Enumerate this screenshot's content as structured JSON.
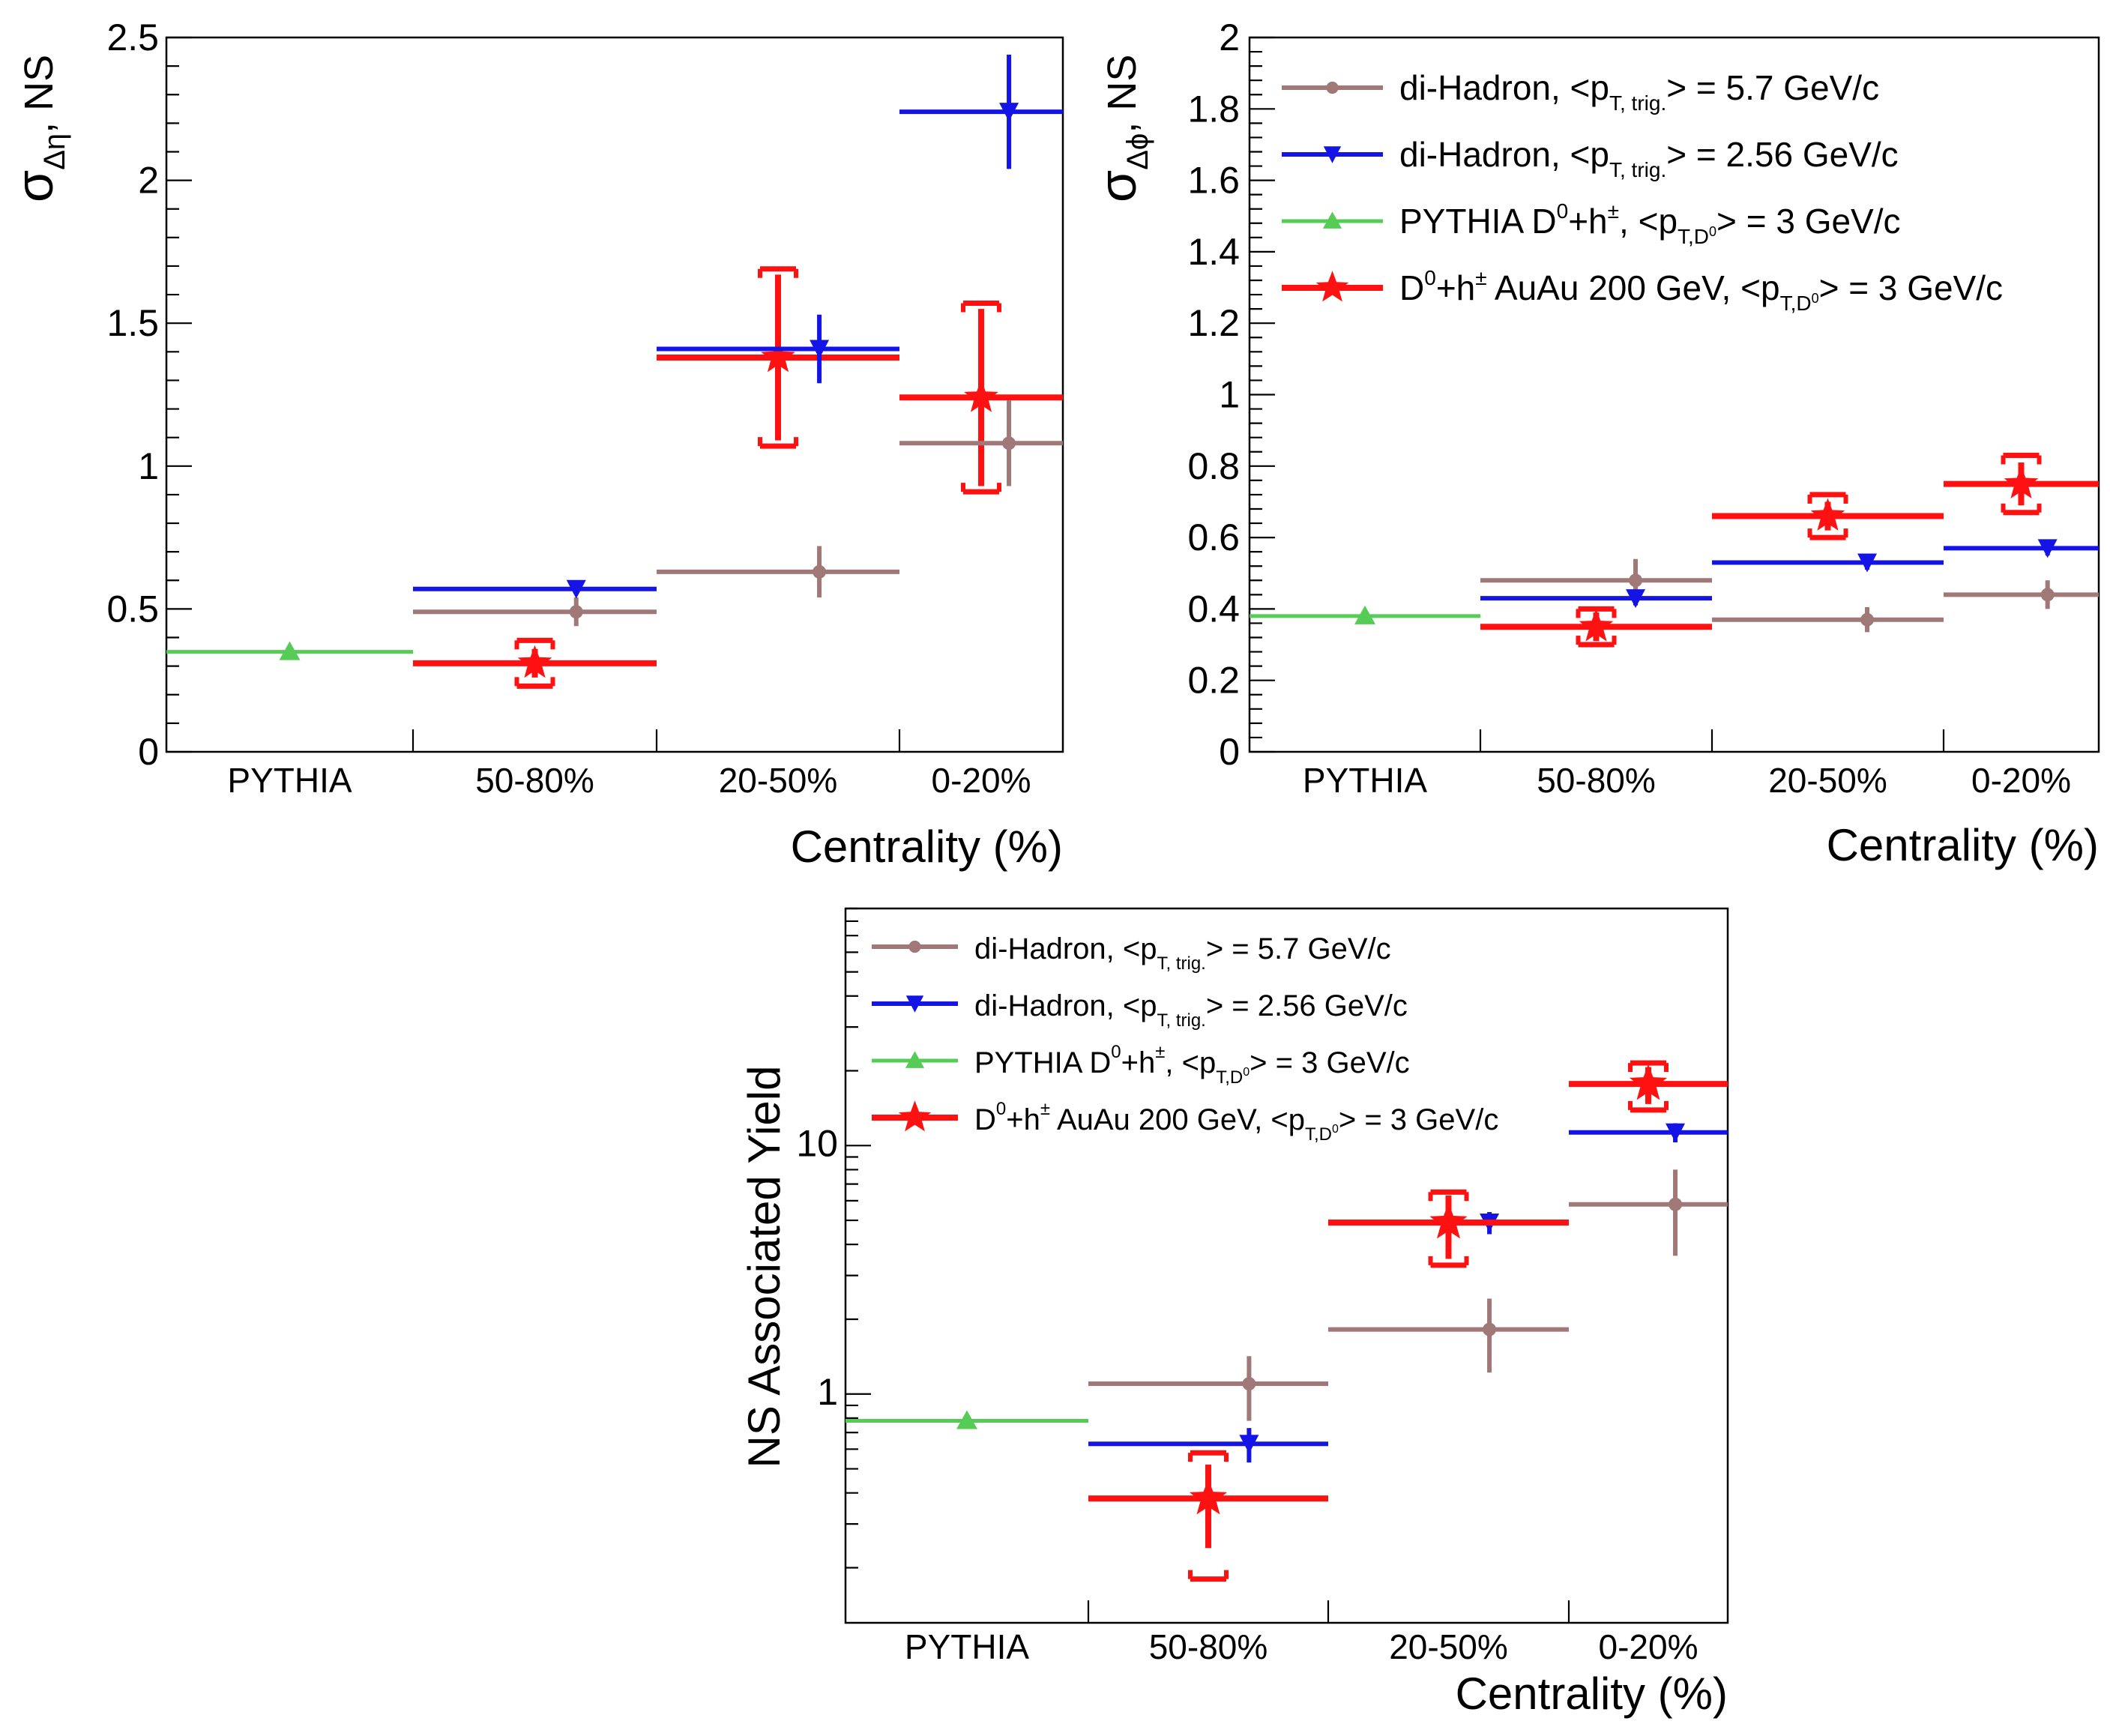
{
  "colors": {
    "diHadron57": "#a07878",
    "diHadron256": "#1414e6",
    "pythia": "#55cc55",
    "auau": "#ff1111"
  },
  "legend_entries": [
    {
      "key": "diHadron57",
      "marker": "circle",
      "main": "di-Hadron, <p",
      "sub": "T, trig.",
      "tail": "> =  5.7 GeV/c"
    },
    {
      "key": "diHadron256",
      "marker": "triangle-down",
      "main": "di-Hadron, <p",
      "sub": "T, trig.",
      "tail": "> =  2.56 GeV/c"
    },
    {
      "key": "pythia",
      "marker": "triangle-up",
      "pre": "PYTHIA D",
      "sup1": "0",
      "mid": "+h",
      "sup2": "±",
      "main": ", <p",
      "sub": "T,D",
      "subsup": "0",
      "tail": "> = 3 GeV/c"
    },
    {
      "key": "auau",
      "marker": "star",
      "pre": "D",
      "sup1": "0",
      "mid": "+h",
      "sup2": "±",
      "main": " AuAu 200 GeV, <p",
      "sub": "T,D",
      "subsup": "0",
      "tail": "> = 3 GeV/c"
    }
  ],
  "chart_data": [
    {
      "id": "sigma-deta",
      "type": "scatter",
      "ylabel_main": "σ",
      "ylabel_sub": "Δη",
      "ylabel_tail": ", NS",
      "xlabel": "Centrality (%)",
      "categories": [
        "PYTHIA",
        "50-80%",
        "20-50%",
        "0-20%"
      ],
      "yscale": "linear",
      "ylim": [
        0,
        2.5
      ],
      "yticks": [
        "0",
        "0.5",
        "1",
        "1.5",
        "2",
        "2.5"
      ],
      "show_legend": false,
      "series": [
        {
          "key": "pythia",
          "points": [
            {
              "bin": 0,
              "y": 0.35
            }
          ]
        },
        {
          "key": "auau",
          "points": [
            {
              "bin": 1,
              "y": 0.31,
              "err": 0.05,
              "sys": 0.08
            },
            {
              "bin": 2,
              "y": 1.38,
              "err": 0.29,
              "sys": 0.31
            },
            {
              "bin": 3,
              "y": 1.24,
              "err": 0.31,
              "sys": 0.33
            }
          ]
        },
        {
          "key": "diHadron57",
          "points": [
            {
              "bin": 1,
              "y": 0.49,
              "err": 0.05
            },
            {
              "bin": 2,
              "y": 0.63,
              "err": 0.09
            },
            {
              "bin": 3,
              "y": 1.08,
              "err": 0.15
            }
          ]
        },
        {
          "key": "diHadron256",
          "points": [
            {
              "bin": 1,
              "y": 0.57,
              "err": 0.02
            },
            {
              "bin": 2,
              "y": 1.41,
              "err": 0.12
            },
            {
              "bin": 3,
              "y": 2.24,
              "err": 0.2
            }
          ]
        }
      ]
    },
    {
      "id": "sigma-dphi",
      "type": "scatter",
      "ylabel_main": "σ",
      "ylabel_sub": "Δϕ",
      "ylabel_tail": ", NS",
      "xlabel": "Centrality (%)",
      "categories": [
        "PYTHIA",
        "50-80%",
        "20-50%",
        "0-20%"
      ],
      "yscale": "linear",
      "ylim": [
        0,
        2
      ],
      "yticks": [
        "0",
        "0.2",
        "0.4",
        "0.6",
        "0.8",
        "1",
        "1.2",
        "1.4",
        "1.6",
        "1.8",
        "2"
      ],
      "show_legend": true,
      "series": [
        {
          "key": "pythia",
          "points": [
            {
              "bin": 0,
              "y": 0.38
            }
          ]
        },
        {
          "key": "diHadron57",
          "points": [
            {
              "bin": 1,
              "y": 0.48,
              "err": 0.06
            },
            {
              "bin": 2,
              "y": 0.37,
              "err": 0.035
            },
            {
              "bin": 3,
              "y": 0.44,
              "err": 0.04
            }
          ]
        },
        {
          "key": "diHadron256",
          "points": [
            {
              "bin": 1,
              "y": 0.43,
              "err": 0.02
            },
            {
              "bin": 2,
              "y": 0.53,
              "err": 0.02
            },
            {
              "bin": 3,
              "y": 0.57,
              "err": 0.02
            }
          ]
        },
        {
          "key": "auau",
          "points": [
            {
              "bin": 1,
              "y": 0.35,
              "err": 0.04,
              "sys": 0.05
            },
            {
              "bin": 2,
              "y": 0.66,
              "err": 0.04,
              "sys": 0.06
            },
            {
              "bin": 3,
              "y": 0.75,
              "err": 0.06,
              "sys": 0.08
            }
          ]
        }
      ]
    },
    {
      "id": "ns-yield",
      "type": "scatter",
      "ylabel_main": "NS Associated Yield",
      "xlabel": "Centrality (%)",
      "categories": [
        "PYTHIA",
        "50-80%",
        "20-50%",
        "0-20%"
      ],
      "yscale": "log",
      "ylim": [
        0.12,
        90
      ],
      "yticks": [
        "1",
        "10"
      ],
      "show_legend": true,
      "series": [
        {
          "key": "pythia",
          "points": [
            {
              "bin": 0,
              "y": 0.78
            }
          ]
        },
        {
          "key": "diHadron57",
          "points": [
            {
              "bin": 1,
              "y": 1.1,
              "err": 0.32
            },
            {
              "bin": 2,
              "y": 1.82,
              "err": 0.6
            },
            {
              "bin": 3,
              "y": 5.8,
              "err": 2.2
            }
          ]
        },
        {
          "key": "diHadron256",
          "points": [
            {
              "bin": 1,
              "y": 0.63,
              "err": 0.1
            },
            {
              "bin": 2,
              "y": 4.9,
              "err": 0.5
            },
            {
              "bin": 3,
              "y": 11.3,
              "err": 1.0
            }
          ]
        },
        {
          "key": "auau",
          "points": [
            {
              "bin": 1,
              "y": 0.38,
              "err": 0.14,
              "sys": 0.2
            },
            {
              "bin": 2,
              "y": 4.9,
              "err": 1.4,
              "sys": 1.6
            },
            {
              "bin": 3,
              "y": 17.7,
              "err": 3.0,
              "sys": 3.8
            }
          ]
        }
      ]
    }
  ]
}
